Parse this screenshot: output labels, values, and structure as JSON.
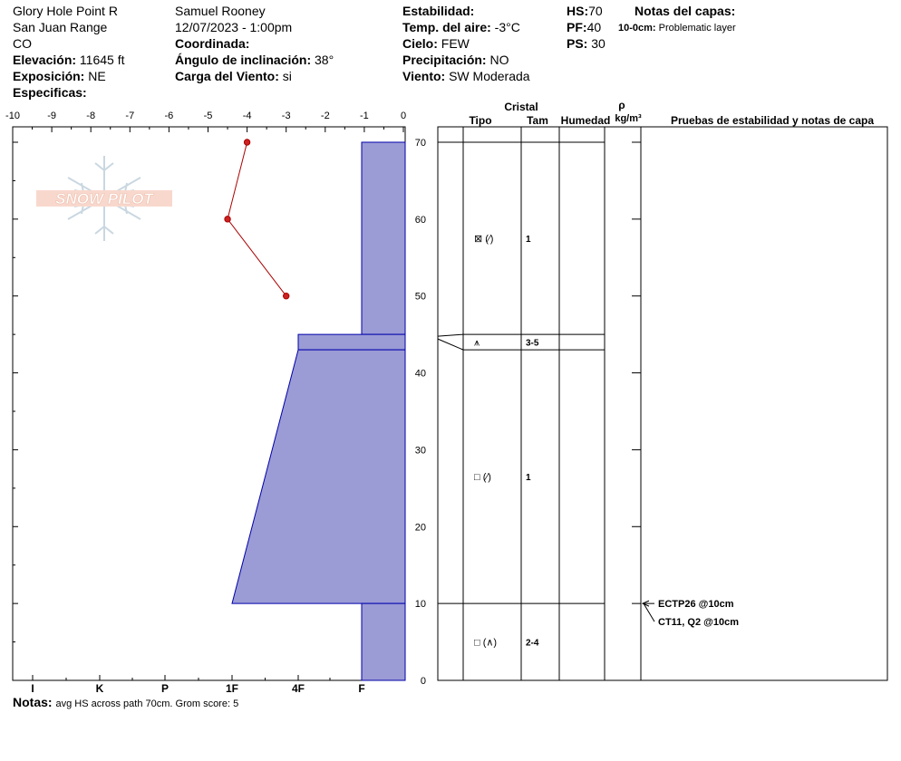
{
  "header": {
    "location": "Glory Hole Point R",
    "range": "San Juan Range",
    "state": "CO",
    "elevation_label": "Elevación:",
    "elevation_value": "11645 ft",
    "aspect_label": "Exposición:",
    "aspect_value": "NE",
    "specifics_label": "Especificas:",
    "observer": "Samuel  Rooney",
    "datetime": "12/07/2023 - 1:00pm",
    "coord_label": "Coordinada:",
    "slope_label": "Ángulo de inclinación:",
    "slope_value": "38°",
    "wind_load_label": "Carga del Viento:",
    "wind_load_value": "si",
    "stability_label": "Estabilidad:",
    "air_temp_label": "Temp. del aire:",
    "air_temp_value": "-3°C",
    "sky_label": "Cielo:",
    "sky_value": "FEW",
    "precip_label": "Precipitación:",
    "precip_value": "NO",
    "wind_label": "Viento:",
    "wind_value": "SW Moderada",
    "hs_label": "HS:",
    "hs_value": "70",
    "pf_label": "PF:",
    "pf_value": "40",
    "ps_label": "PS:",
    "ps_value": "30",
    "layer_notes_label": "Notas del capas:",
    "layer_note_depth": "10-0cm:",
    "layer_note_text": "Problematic layer"
  },
  "footer": {
    "notes_label": "Notas:",
    "notes_text": "avg HS across path 70cm. Grom score: 5"
  },
  "colors": {
    "hardness_fill": "#9b9bd6",
    "hardness_line": "#0000aa",
    "temp_line": "#aa0000",
    "temp_point": "#cc2222"
  },
  "chart_data": {
    "type": "snow_profile",
    "temp_axis": {
      "ticks": [
        "-10",
        "-9",
        "-8",
        "-7",
        "-6",
        "-5",
        "-4",
        "-3",
        "-2",
        "-1",
        "0"
      ],
      "range": [
        -10,
        0
      ]
    },
    "depth_axis": {
      "ticks": [
        "70",
        "60",
        "50",
        "40",
        "30",
        "20",
        "10",
        "0"
      ],
      "range": [
        0,
        70
      ]
    },
    "hardness_axis": {
      "labels": [
        "I",
        "K",
        "P",
        "1F",
        "4F",
        "F"
      ]
    },
    "temperature_profile": [
      {
        "depth": 70,
        "temp": -4.0
      },
      {
        "depth": 60,
        "temp": -4.5
      },
      {
        "depth": 50,
        "temp": -3.0
      }
    ],
    "hardness_profile": [
      {
        "top": 70,
        "bottom": 45,
        "hardness_top": "F",
        "hardness_bottom": "F"
      },
      {
        "top": 45,
        "bottom": 43,
        "hardness_top": "4F",
        "hardness_bottom": "4F"
      },
      {
        "top": 43,
        "bottom": 10,
        "hardness_top": "4F",
        "hardness_bottom": "1F"
      },
      {
        "top": 10,
        "bottom": 0,
        "hardness_top": "F",
        "hardness_bottom": "F"
      }
    ],
    "table_headers": {
      "cristal": "Cristal",
      "tipo": "Tipo",
      "tam": "Tam",
      "humedad": "Humedad",
      "rho": "ρ",
      "density_unit": "kg/m³",
      "tests": "Pruebas de estabilidad y notas de capa"
    },
    "layer_boundaries": [
      70,
      45,
      43,
      10
    ],
    "crystals": [
      {
        "depth": 57.5,
        "symbol": "⊠ (⁄)",
        "size": "1"
      },
      {
        "depth": 44,
        "symbol": "⩚",
        "size": "3-5"
      },
      {
        "depth": 26.5,
        "symbol": "□ (⁄)",
        "size": "1"
      },
      {
        "depth": 5,
        "symbol": "□ (∧)",
        "size": "2-4"
      }
    ],
    "stability_tests": [
      {
        "depth": 10,
        "label": "ECTP26 @10cm"
      },
      {
        "depth": 10,
        "label": "CT11, Q2 @10cm"
      }
    ]
  }
}
